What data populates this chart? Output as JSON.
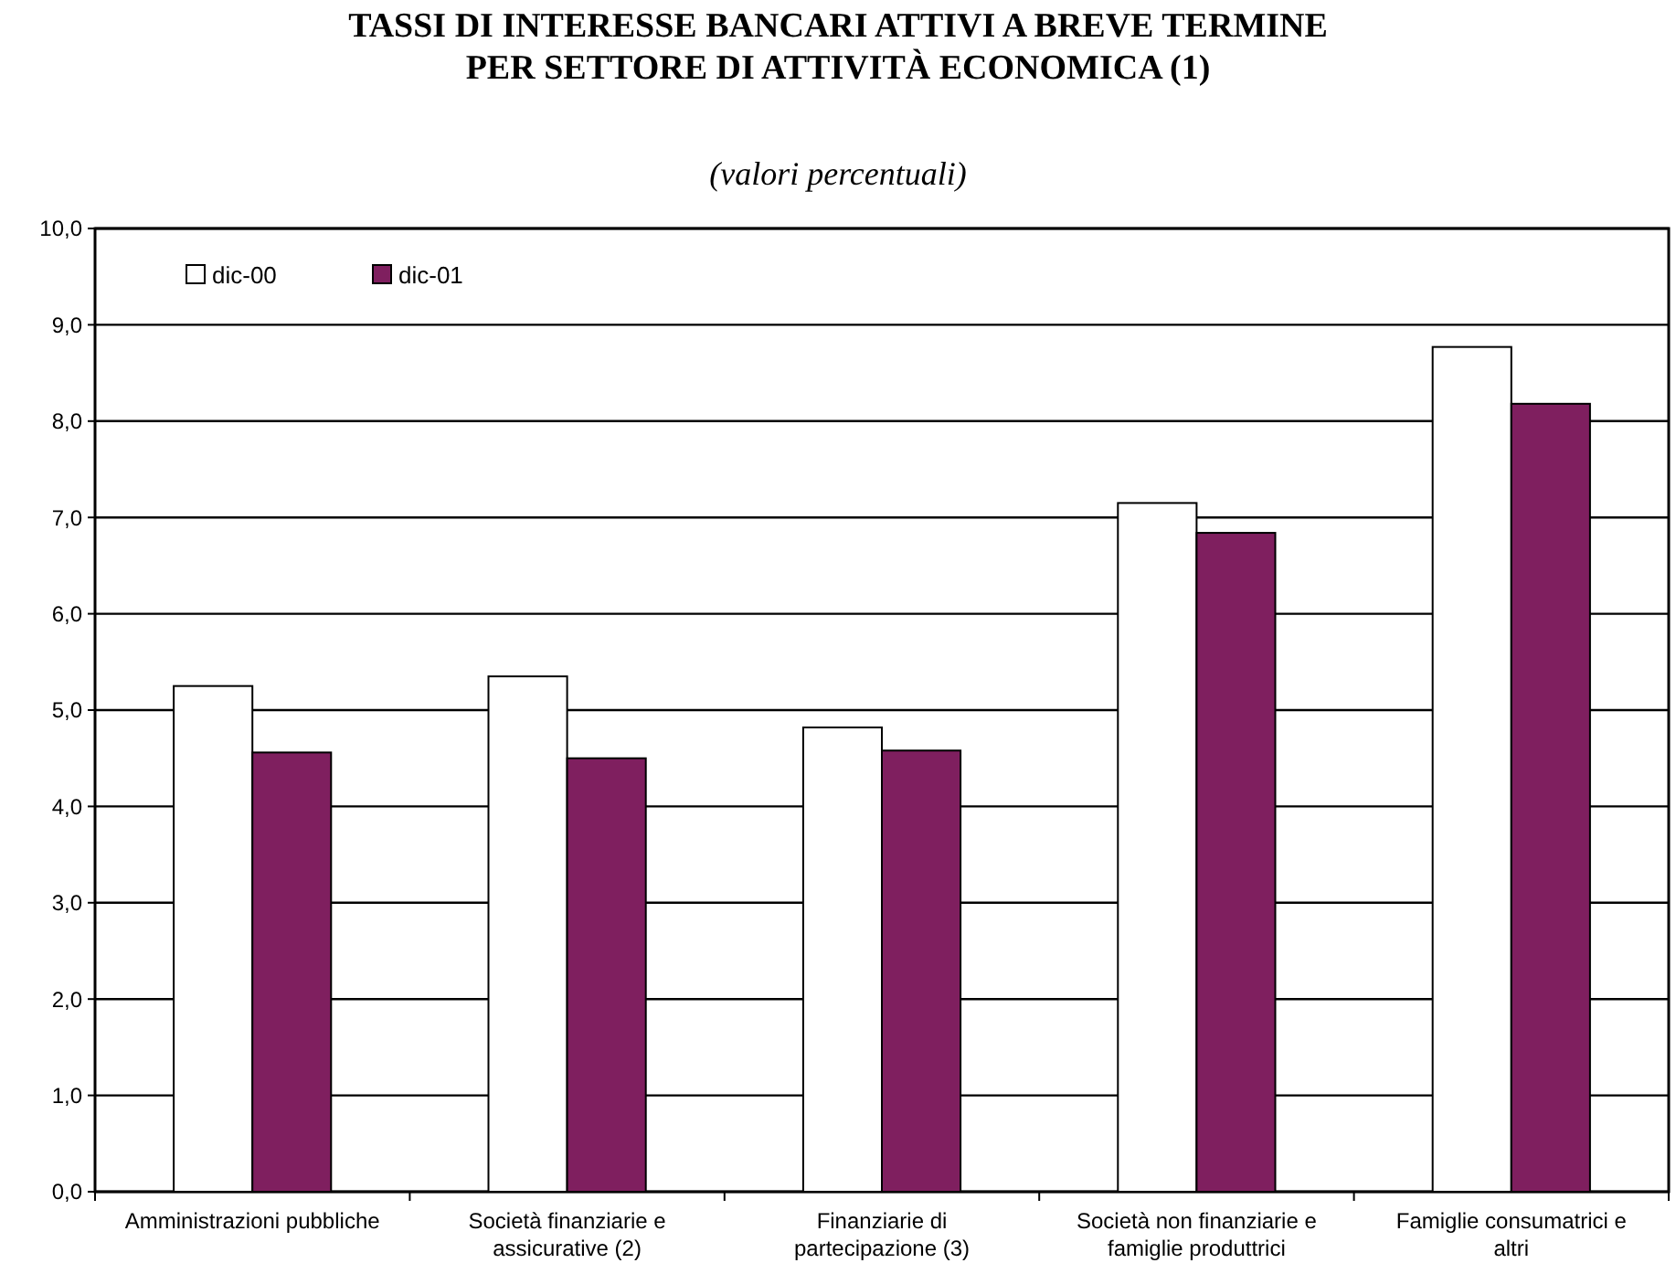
{
  "chart_data": {
    "type": "bar",
    "title": "TASSI DI INTERESSE BANCARI ATTIVI A BREVE TERMINE\nPER SETTORE DI ATTIVITÀ ECONOMICA (1)",
    "subtitle": "(valori percentuali)",
    "categories": [
      "Amministrazioni pubbliche",
      "Società finanziarie e assicurative (2)",
      "Finanziarie di partecipazione (3)",
      "Società non finanziarie e famiglie produttrici",
      "Famiglie consumatrici e altri"
    ],
    "series": [
      {
        "name": "dic-00",
        "color": "#ffffff",
        "values": [
          5.25,
          5.35,
          4.82,
          7.15,
          8.77
        ]
      },
      {
        "name": "dic-01",
        "color": "#7f1f5f",
        "values": [
          4.56,
          4.5,
          4.58,
          6.84,
          8.18
        ]
      }
    ],
    "ylim": [
      0,
      10
    ],
    "yticks": [
      {
        "value": 0,
        "label": "0,0"
      },
      {
        "value": 1,
        "label": "1,0"
      },
      {
        "value": 2,
        "label": "2,0"
      },
      {
        "value": 3,
        "label": "3,0"
      },
      {
        "value": 4,
        "label": "4,0"
      },
      {
        "value": 5,
        "label": "5,0"
      },
      {
        "value": 6,
        "label": "6,0"
      },
      {
        "value": 7,
        "label": "7,0"
      },
      {
        "value": 8,
        "label": "8,0"
      },
      {
        "value": 9,
        "label": "9,0"
      },
      {
        "value": 10,
        "label": "10,0"
      }
    ],
    "grid": "y",
    "legend": "top left"
  }
}
